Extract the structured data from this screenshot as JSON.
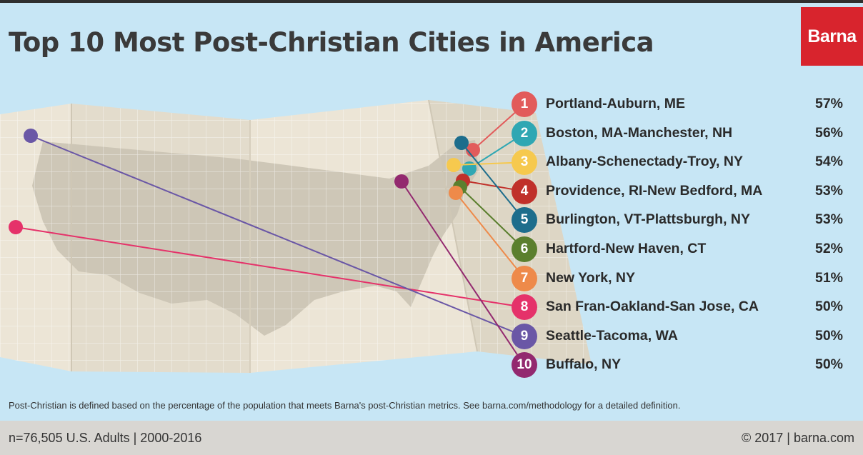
{
  "header": {
    "title": "Top 10 Most Post-Christian Cities in America",
    "brand": "Barna"
  },
  "colors": {
    "background": "#c7e6f5",
    "brand_red": "#d8242d",
    "map_paper": "#e9e2d3",
    "map_land": "#c9c2b2"
  },
  "chart_data": {
    "type": "table",
    "columns": [
      "Rank",
      "City",
      "Percentage"
    ],
    "rows": [
      {
        "rank": "1",
        "city": "Portland-Auburn, ME",
        "value_label": "57%",
        "value": 57,
        "color": "#e25b5b"
      },
      {
        "rank": "2",
        "city": "Boston, MA-Manchester, NH",
        "value_label": "56%",
        "value": 56,
        "color": "#2fa7b3"
      },
      {
        "rank": "3",
        "city": "Albany-Schenectady-Troy, NY",
        "value_label": "54%",
        "value": 54,
        "color": "#f6c94e"
      },
      {
        "rank": "4",
        "city": "Providence, RI-New Bedford, MA",
        "value_label": "53%",
        "value": 53,
        "color": "#c0302a"
      },
      {
        "rank": "5",
        "city": "Burlington, VT-Plattsburgh, NY",
        "value_label": "53%",
        "value": 53,
        "color": "#1d6d8c"
      },
      {
        "rank": "6",
        "city": "Hartford-New Haven, CT",
        "value_label": "52%",
        "value": 52,
        "color": "#5b7f2e"
      },
      {
        "rank": "7",
        "city": "New York, NY",
        "value_label": "51%",
        "value": 51,
        "color": "#ee8a4a"
      },
      {
        "rank": "8",
        "city": "San Fran-Oakland-San Jose, CA",
        "value_label": "50%",
        "value": 50,
        "color": "#e5326a"
      },
      {
        "rank": "9",
        "city": "Seattle-Tacoma, WA",
        "value_label": "50%",
        "value": 50,
        "color": "#6a57a6"
      },
      {
        "rank": "10",
        "city": "Buffalo, NY",
        "value_label": "50%",
        "value": 50,
        "color": "#93296f"
      }
    ]
  },
  "note": "Post-Christian is defined based on the percentage of the population that meets Barna's post-Christian metrics. See barna.com/methodology for a detailed definition.",
  "footer": {
    "sample": "n=76,505 U.S. Adults | 2000-2016",
    "copyright": "© 2017 | barna.com"
  }
}
